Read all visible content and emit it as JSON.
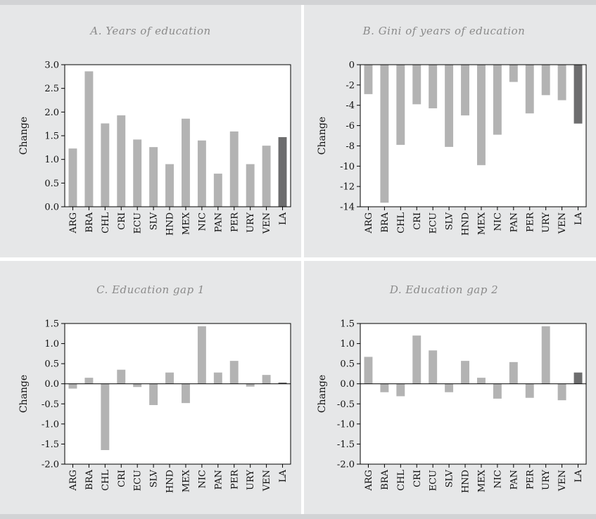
{
  "colors": {
    "background": "#e6e7e8",
    "plot_background": "#ffffff",
    "bar_country": "#b3b3b3",
    "bar_la": "#6d6d6e",
    "title": "#8a8a8a"
  },
  "chart_data": [
    {
      "id": "A",
      "type": "bar",
      "title": "A. Years of education",
      "ylabel": "Change",
      "xlabel": "",
      "categories": [
        "ARG",
        "BRA",
        "CHL",
        "CRI",
        "ECU",
        "SLV",
        "HND",
        "MEX",
        "NIC",
        "PAN",
        "PER",
        "URY",
        "VEN",
        "LA"
      ],
      "values": [
        1.23,
        2.86,
        1.76,
        1.93,
        1.42,
        1.26,
        0.9,
        1.86,
        1.4,
        0.7,
        1.59,
        0.9,
        1.29,
        1.47
      ],
      "ylim": [
        0,
        3.0
      ],
      "yticks": [
        0,
        0.5,
        1.0,
        1.5,
        2.0,
        2.5,
        3.0
      ],
      "ytick_labels": [
        "0.0",
        "0.5",
        "1.0",
        "1.5",
        "2.0",
        "2.5",
        "3.0"
      ],
      "highlight": "LA",
      "grid": false
    },
    {
      "id": "B",
      "type": "bar",
      "title": "B. Gini of years of education",
      "ylabel": "Change",
      "xlabel": "",
      "categories": [
        "ARG",
        "BRA",
        "CHL",
        "CRI",
        "ECU",
        "SLV",
        "HND",
        "MEX",
        "NIC",
        "PAN",
        "PER",
        "URY",
        "VEN",
        "LA"
      ],
      "values": [
        -2.9,
        -13.6,
        -7.9,
        -3.9,
        -4.3,
        -8.1,
        -5.0,
        -9.9,
        -6.9,
        -1.7,
        -4.8,
        -3.0,
        -3.5,
        -5.8
      ],
      "ylim": [
        -14,
        0
      ],
      "yticks": [
        0,
        -2,
        -4,
        -6,
        -8,
        -10,
        -12,
        -14
      ],
      "ytick_labels": [
        "0",
        "-2",
        "-4",
        "-6",
        "-8",
        "-10",
        "-12",
        "-14"
      ],
      "highlight": "LA",
      "grid": false
    },
    {
      "id": "C",
      "type": "bar",
      "title": "C. Education gap 1",
      "ylabel": "Change",
      "xlabel": "",
      "categories": [
        "ARG",
        "BRA",
        "CHL",
        "CRI",
        "ECU",
        "SLV",
        "HND",
        "MEX",
        "NIC",
        "PAN",
        "PER",
        "URY",
        "VEN",
        "LA"
      ],
      "values": [
        -0.12,
        0.15,
        -1.65,
        0.35,
        -0.08,
        -0.53,
        0.28,
        -0.48,
        1.43,
        0.28,
        0.57,
        -0.07,
        0.22,
        0.03
      ],
      "ylim": [
        -2.0,
        1.5
      ],
      "yticks": [
        1.5,
        1.0,
        0.5,
        0,
        -0.5,
        -1.0,
        -1.5,
        -2.0
      ],
      "ytick_labels": [
        "1.5",
        "1.0",
        "0.5",
        "0.0",
        "-0.5",
        "-1.0",
        "-1.5",
        "-2.0"
      ],
      "highlight": "LA",
      "grid": false
    },
    {
      "id": "D",
      "type": "bar",
      "title": "D. Education gap 2",
      "ylabel": "Change",
      "xlabel": "",
      "categories": [
        "ARG",
        "BRA",
        "CHL",
        "CRI",
        "ECU",
        "SLV",
        "HND",
        "MEX",
        "NIC",
        "PAN",
        "PER",
        "URY",
        "VEN",
        "LA"
      ],
      "values": [
        0.67,
        -0.21,
        -0.31,
        1.2,
        0.83,
        -0.21,
        0.57,
        0.15,
        -0.37,
        0.54,
        -0.35,
        1.43,
        -0.41,
        0.28
      ],
      "ylim": [
        -2.0,
        1.5
      ],
      "yticks": [
        1.5,
        1.0,
        0.5,
        0,
        -0.5,
        -1.0,
        -1.5,
        -2.0
      ],
      "ytick_labels": [
        "1.5",
        "1.0",
        "0.5",
        "0.0",
        "-0.5",
        "-1.0",
        "-1.5",
        "-2.0"
      ],
      "highlight": "LA",
      "grid": false
    }
  ]
}
